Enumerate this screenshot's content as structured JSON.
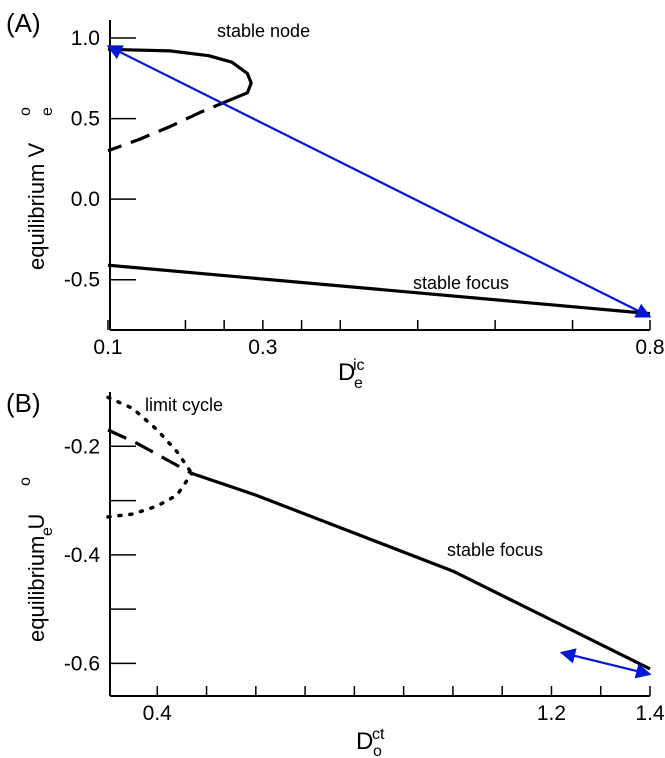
{
  "chart_data": [
    {
      "panel": "(A)",
      "type": "line",
      "xlabel": {
        "base": "D",
        "sub": "e",
        "sup": "ic"
      },
      "ylabel": {
        "base": "equilibrium V",
        "sub": "e",
        "sup": "o"
      },
      "xlim": [
        0.1,
        0.8
      ],
      "ylim": [
        -0.75,
        1.0
      ],
      "x_tick_labels": [
        "0.1",
        "0.3",
        "0.8"
      ],
      "y_tick_labels": [
        "1.0",
        "0.5",
        "0.0",
        "-0.5"
      ],
      "annotations": [
        "stable node",
        "stable focus"
      ],
      "series": [
        {
          "name": "stable node",
          "style": "solid",
          "x": [
            0.1,
            0.18,
            0.23,
            0.26,
            0.28,
            0.285,
            0.28,
            0.26
          ],
          "y": [
            0.93,
            0.92,
            0.89,
            0.85,
            0.78,
            0.72,
            0.66,
            0.62
          ]
        },
        {
          "style": "dashed",
          "x": [
            0.26,
            0.22,
            0.18,
            0.14,
            0.1
          ],
          "y": [
            0.62,
            0.54,
            0.45,
            0.37,
            0.3
          ]
        },
        {
          "name": "stable focus",
          "style": "solid",
          "x": [
            0.1,
            0.8
          ],
          "y": [
            -0.41,
            -0.71
          ]
        }
      ],
      "arrow": {
        "color": "#0018d6",
        "from": [
          0.8,
          -0.73
        ],
        "to": [
          0.1,
          0.95
        ],
        "double_headed": true
      }
    },
    {
      "panel": "(B)",
      "type": "line",
      "xlabel": {
        "base": "D",
        "sub": "o",
        "sup": "ct"
      },
      "ylabel": {
        "base": "equilibrium U",
        "sub": "e",
        "sup": "o"
      },
      "xlim": [
        0.3,
        1.4
      ],
      "ylim": [
        -0.66,
        -0.1
      ],
      "x_tick_labels": [
        "0.4",
        "1.2",
        "1.4"
      ],
      "y_tick_labels": [
        "-0.2",
        "-0.4",
        "-0.6"
      ],
      "annotations": [
        "limit cycle",
        "stable focus"
      ],
      "series": [
        {
          "name": "limit cycle",
          "style": "dotted",
          "x": [
            0.3,
            0.35,
            0.4,
            0.44,
            0.47
          ],
          "y": [
            -0.11,
            -0.13,
            -0.17,
            -0.21,
            -0.25
          ]
        },
        {
          "style": "dotted",
          "x": [
            0.3,
            0.35,
            0.4,
            0.44,
            0.47
          ],
          "y": [
            -0.33,
            -0.325,
            -0.31,
            -0.29,
            -0.25
          ]
        },
        {
          "style": "dashed",
          "x": [
            0.3,
            0.36,
            0.42,
            0.47
          ],
          "y": [
            -0.17,
            -0.195,
            -0.225,
            -0.25
          ]
        },
        {
          "name": "stable focus",
          "style": "solid",
          "x": [
            0.47,
            0.6,
            0.8,
            1.0,
            1.2,
            1.4
          ],
          "y": [
            -0.25,
            -0.29,
            -0.36,
            -0.43,
            -0.52,
            -0.61
          ]
        }
      ],
      "arrow": {
        "color": "#0018d6",
        "from": [
          1.22,
          -0.58
        ],
        "to": [
          1.4,
          -0.62
        ],
        "double_headed": true
      }
    }
  ]
}
